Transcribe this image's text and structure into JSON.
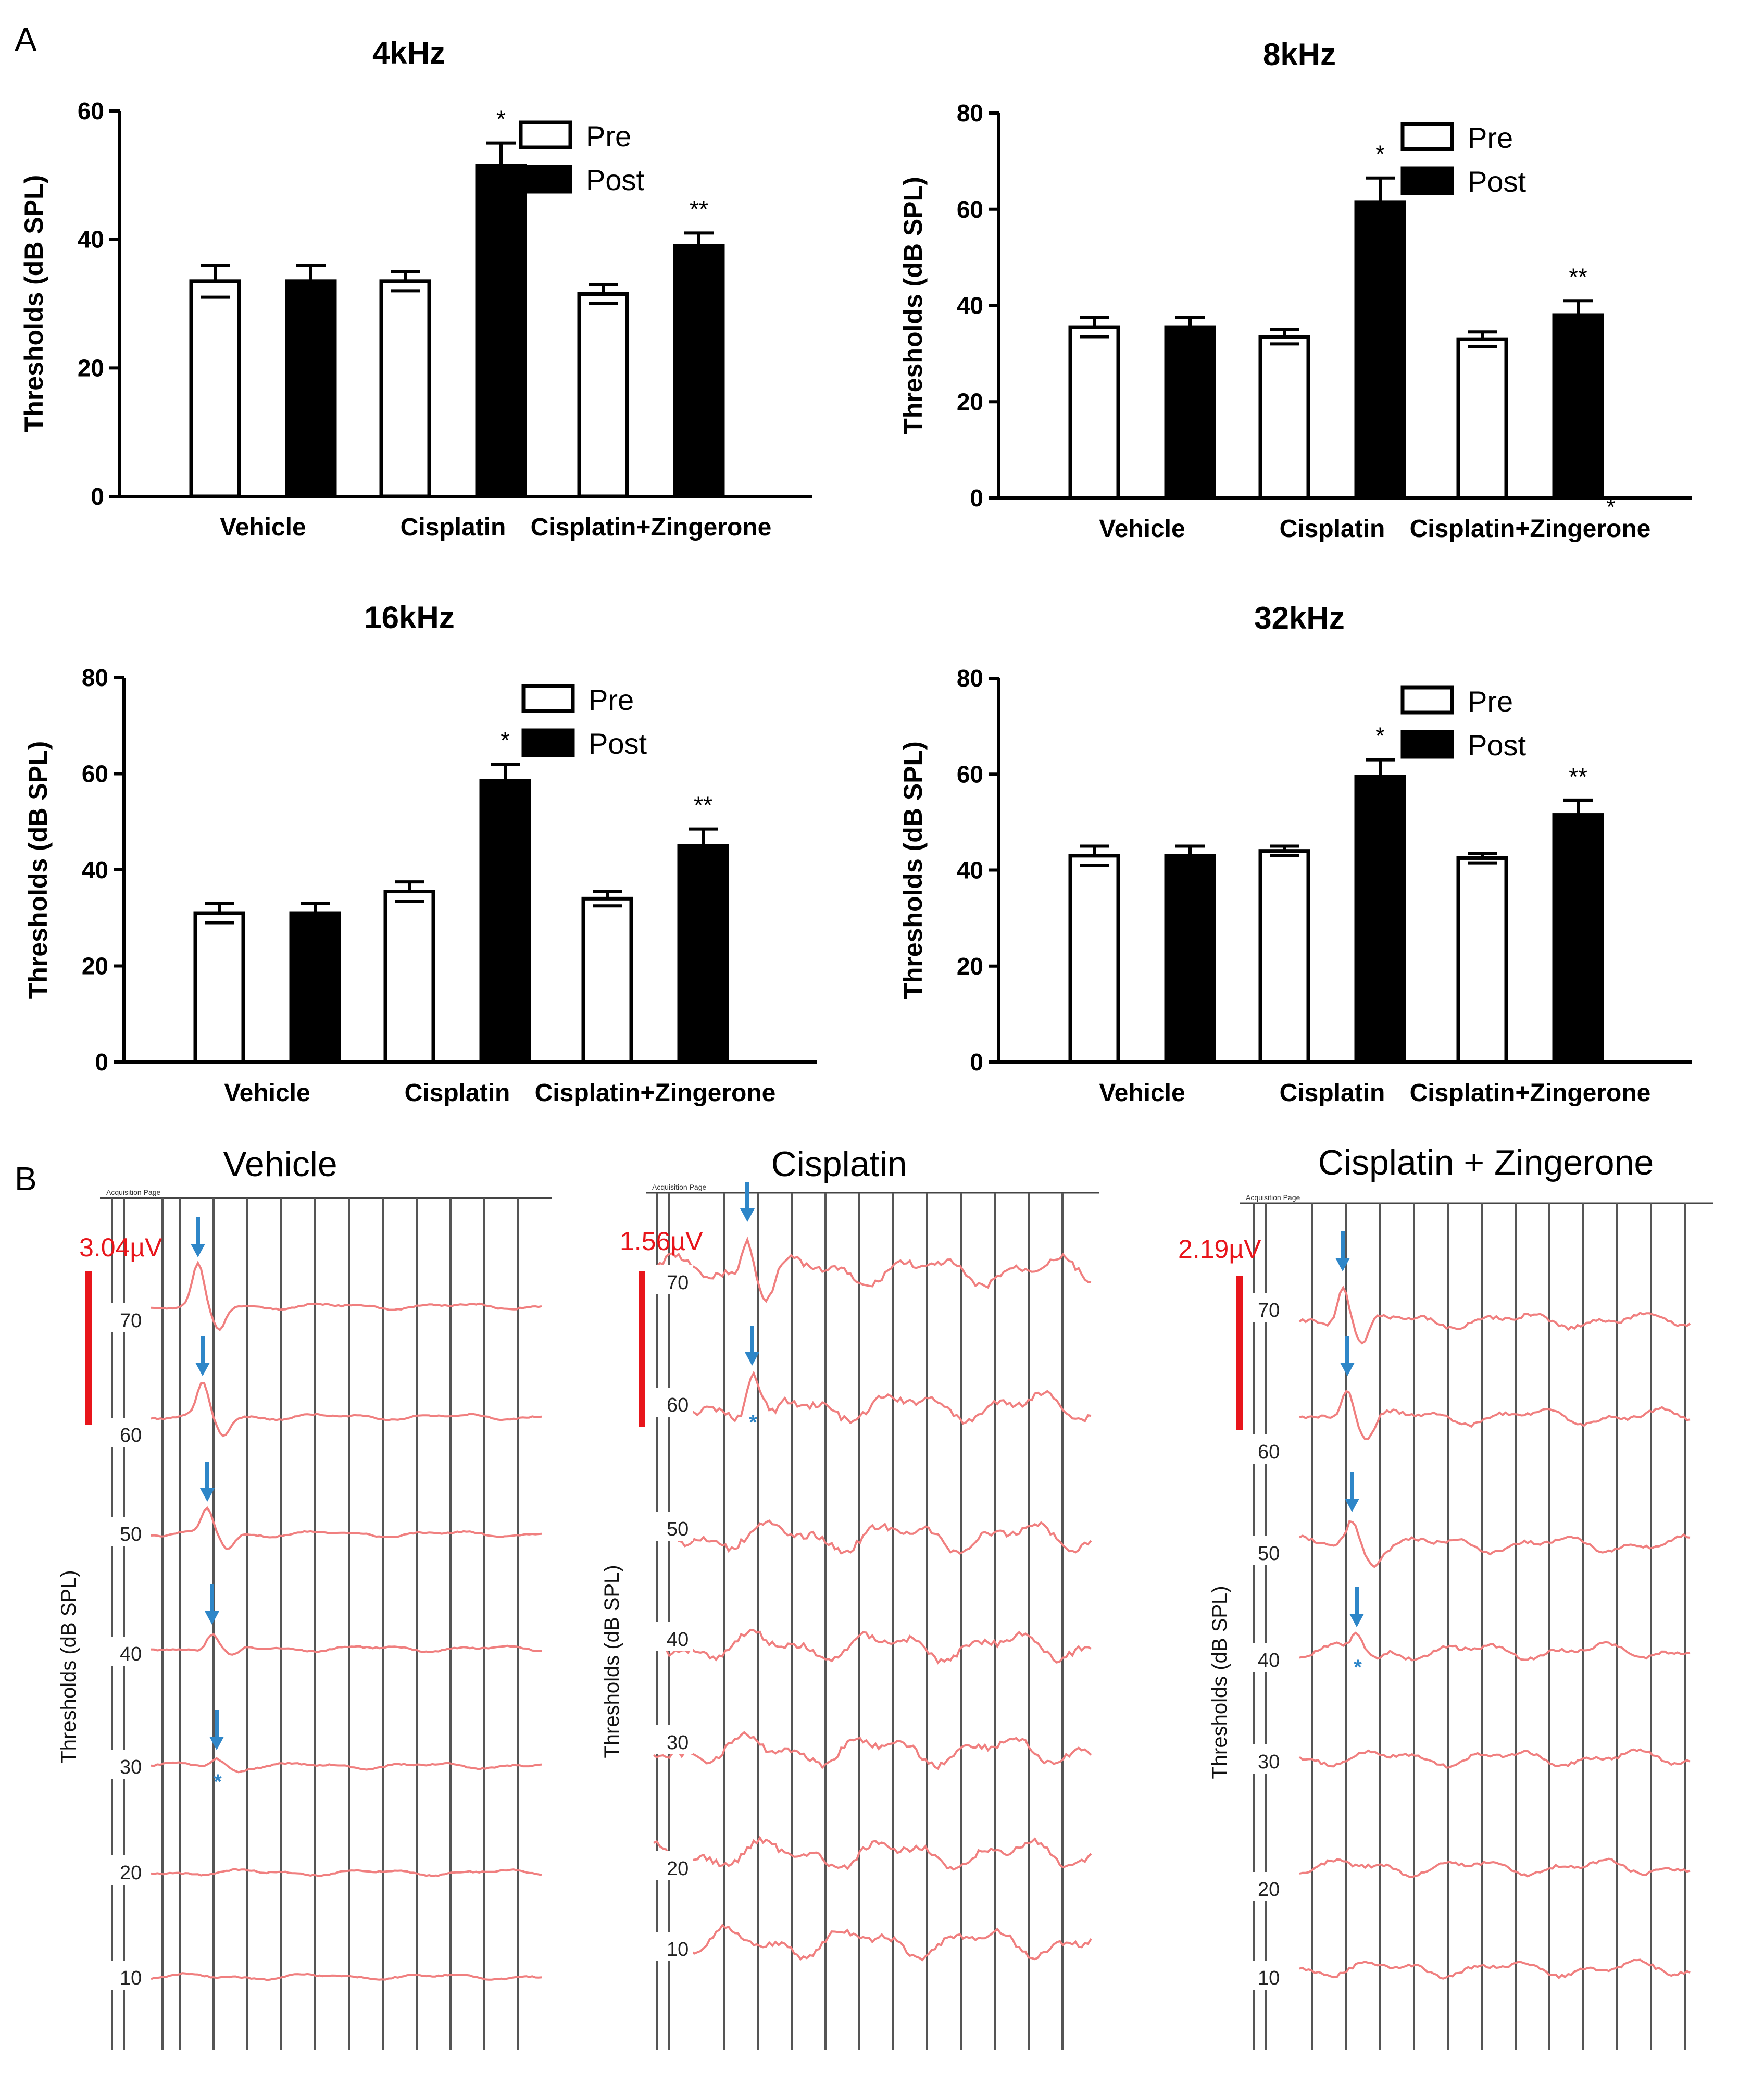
{
  "panel_labels": {
    "a": "A",
    "b": "B"
  },
  "legend": {
    "pre": "Pre",
    "post": "Post"
  },
  "chart_data": [
    {
      "type": "bar",
      "title": "4kHz",
      "ylabel": "Thresholds (dB SPL)",
      "ylim": [
        0,
        60
      ],
      "yticks": [
        0,
        20,
        40,
        60
      ],
      "categories": [
        "Vehicle",
        "Cisplatin",
        "Cisplatin+Zingerone"
      ],
      "series": [
        {
          "name": "Pre",
          "values": [
            33.5,
            33.5,
            31.5
          ],
          "errors": [
            2.5,
            1.5,
            1.5
          ]
        },
        {
          "name": "Post",
          "values": [
            33.5,
            51.5,
            39.0
          ],
          "errors": [
            2.5,
            3.5,
            2.0
          ]
        }
      ],
      "annotations": [
        {
          "category": "Cisplatin",
          "series": "Post",
          "text": "*"
        },
        {
          "category": "Cisplatin+Zingerone",
          "series": "Post",
          "text": "**"
        }
      ]
    },
    {
      "type": "bar",
      "title": "8kHz",
      "ylabel": "Thresholds (dB SPL)",
      "ylim": [
        0,
        80
      ],
      "yticks": [
        0,
        20,
        40,
        60,
        80
      ],
      "categories": [
        "Vehicle",
        "Cisplatin",
        "Cisplatin+Zingerone"
      ],
      "series": [
        {
          "name": "Pre",
          "values": [
            35.5,
            33.5,
            33.0
          ],
          "errors": [
            2.0,
            1.5,
            1.5
          ]
        },
        {
          "name": "Post",
          "values": [
            35.5,
            61.5,
            38.0
          ],
          "errors": [
            2.0,
            5.0,
            3.0
          ]
        }
      ],
      "annotations": [
        {
          "category": "Cisplatin",
          "series": "Post",
          "text": "*"
        },
        {
          "category": "Cisplatin+Zingerone",
          "series": "Post",
          "text": "**"
        }
      ],
      "extra_marks": [
        "*"
      ]
    },
    {
      "type": "bar",
      "title": "16kHz",
      "ylabel": "Thresholds (dB SPL)",
      "ylim": [
        0,
        80
      ],
      "yticks": [
        0,
        20,
        40,
        60,
        80
      ],
      "categories": [
        "Vehicle",
        "Cisplatin",
        "Cisplatin+Zingerone"
      ],
      "series": [
        {
          "name": "Pre",
          "values": [
            31.0,
            35.5,
            34.0
          ],
          "errors": [
            2.0,
            2.0,
            1.5
          ]
        },
        {
          "name": "Post",
          "values": [
            31.0,
            58.5,
            45.0
          ],
          "errors": [
            2.0,
            3.5,
            3.5
          ]
        }
      ],
      "annotations": [
        {
          "category": "Cisplatin",
          "series": "Post",
          "text": "*"
        },
        {
          "category": "Cisplatin+Zingerone",
          "series": "Post",
          "text": "**"
        }
      ]
    },
    {
      "type": "bar",
      "title": "32kHz",
      "ylabel": "Thresholds (dB SPL)",
      "ylim": [
        0,
        80
      ],
      "yticks": [
        0,
        20,
        40,
        60,
        80
      ],
      "categories": [
        "Vehicle",
        "Cisplatin",
        "Cisplatin+Zingerone"
      ],
      "series": [
        {
          "name": "Pre",
          "values": [
            43.0,
            44.0,
            42.5
          ],
          "errors": [
            2.0,
            1.0,
            1.0
          ]
        },
        {
          "name": "Post",
          "values": [
            43.0,
            59.5,
            51.5
          ],
          "errors": [
            2.0,
            3.5,
            3.0
          ]
        }
      ],
      "annotations": [
        {
          "category": "Cisplatin",
          "series": "Post",
          "text": "*"
        },
        {
          "category": "Cisplatin+Zingerone",
          "series": "Post",
          "text": "**"
        }
      ]
    }
  ],
  "abr_panels": [
    {
      "title": "Vehicle",
      "header": "Acquisition Page",
      "amplitude": "3.04µV",
      "ylabel": "Thresholds (dB SPL)",
      "levels": [
        70,
        60,
        50,
        40,
        30,
        20,
        10
      ],
      "threshold_level": 30,
      "peak_levels": [
        70,
        60,
        50,
        40,
        30
      ],
      "threshold_mark": "*"
    },
    {
      "title": "Cisplatin",
      "header": "Acquisition Page",
      "amplitude": "1.56µV",
      "ylabel": "Thresholds (dB SPL)",
      "levels": [
        70,
        60,
        50,
        40,
        30,
        20,
        10
      ],
      "threshold_level": 60,
      "peak_levels": [
        70,
        60
      ],
      "threshold_mark": "*"
    },
    {
      "title": "Cisplatin + Zingerone",
      "header": "Acquisition Page",
      "amplitude": "2.19µV",
      "ylabel": "Thresholds (dB SPL)",
      "levels": [
        70,
        60,
        50,
        40,
        30,
        20,
        10
      ],
      "threshold_level": 40,
      "peak_levels": [
        70,
        60,
        50,
        40
      ],
      "threshold_mark": "*"
    }
  ],
  "colors": {
    "bar_pre": "#ffffff",
    "bar_post": "#000000",
    "trace": "#f07f7f",
    "arrow": "#2e86c8",
    "scale_bar": "#e8151b",
    "grid": "#555555"
  }
}
